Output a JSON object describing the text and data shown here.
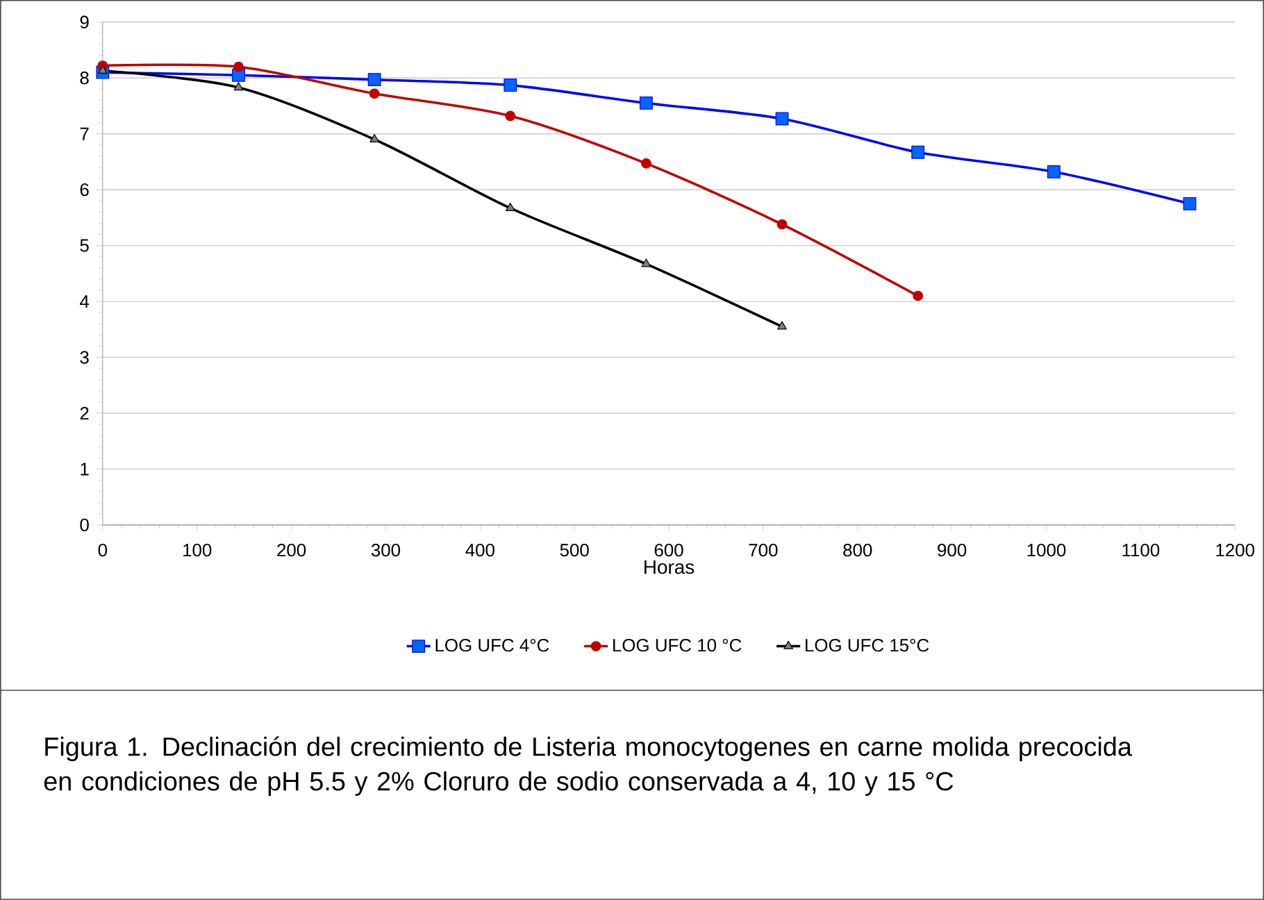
{
  "chart_data": {
    "type": "line",
    "xlabel": "Horas",
    "xlim": [
      0,
      1200
    ],
    "xticks": [
      0,
      100,
      200,
      300,
      400,
      500,
      600,
      700,
      800,
      900,
      1000,
      1100,
      1200
    ],
    "ylim": [
      0,
      9
    ],
    "yticks": [
      0,
      1,
      2,
      3,
      4,
      5,
      6,
      7,
      8,
      9
    ],
    "grid": "y",
    "legend": "bottom",
    "series": [
      {
        "name": "LOG UFC 4°C",
        "color": "#0000ff",
        "marker": "square",
        "x": [
          0,
          144,
          288,
          432,
          576,
          720,
          864,
          1008,
          1152
        ],
        "values": [
          8.1,
          8.05,
          7.97,
          7.87,
          7.55,
          7.27,
          6.67,
          6.32,
          5.75
        ]
      },
      {
        "name": "LOG UFC 10 °C",
        "color": "#c00000",
        "marker": "circle",
        "x": [
          0,
          144,
          288,
          432,
          576,
          720,
          864
        ],
        "values": [
          8.22,
          8.2,
          7.72,
          7.32,
          6.47,
          5.38,
          4.1
        ]
      },
      {
        "name": "LOG UFC 15°C",
        "color": "#000000",
        "marker": "triangle",
        "x": [
          0,
          144,
          288,
          432,
          576,
          720
        ],
        "values": [
          8.13,
          7.83,
          6.9,
          5.67,
          4.67,
          3.55
        ]
      }
    ],
    "annotations": [
      "Figura 1. Declinación del crecimiento de Listeria monocytogenes en carne molida precocida en condiciones de pH 5.5 y 2% Cloruro de sodio conservada a 4, 10 y 15 °C"
    ]
  }
}
